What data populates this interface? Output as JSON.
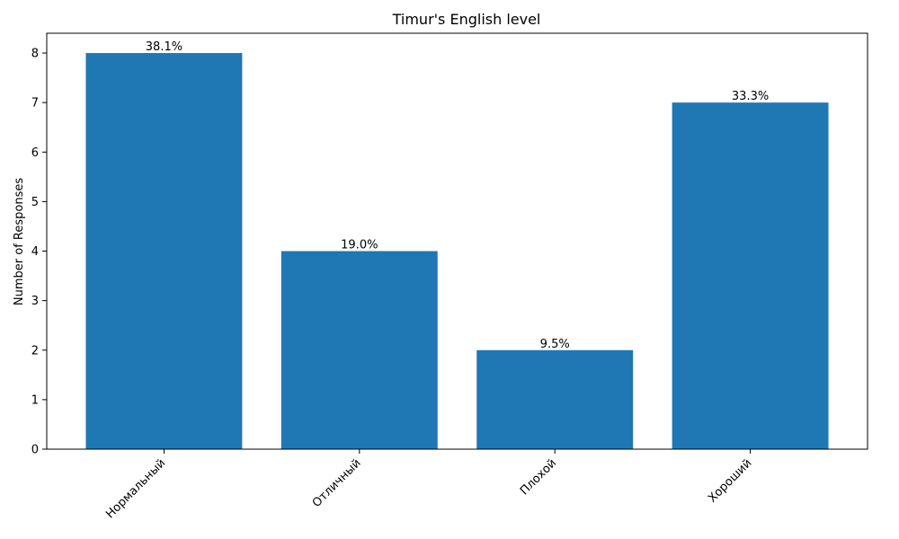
{
  "chart_data": {
    "type": "bar",
    "title": "Timur's English level",
    "xlabel": "",
    "ylabel": "Number of Responses",
    "categories": [
      "Нормальный",
      "Отличный",
      "Плохой",
      "Хороший"
    ],
    "values": [
      8,
      4,
      2,
      7
    ],
    "data_labels": [
      "38.1%",
      "19.0%",
      "9.5%",
      "33.3%"
    ],
    "ylim": [
      0,
      8.4
    ],
    "yticks": [
      0,
      1,
      2,
      3,
      4,
      5,
      6,
      7,
      8
    ],
    "bar_color": "#1f77b4",
    "grid": false,
    "x_tick_rotation": "45 degrees, right-aligned"
  }
}
